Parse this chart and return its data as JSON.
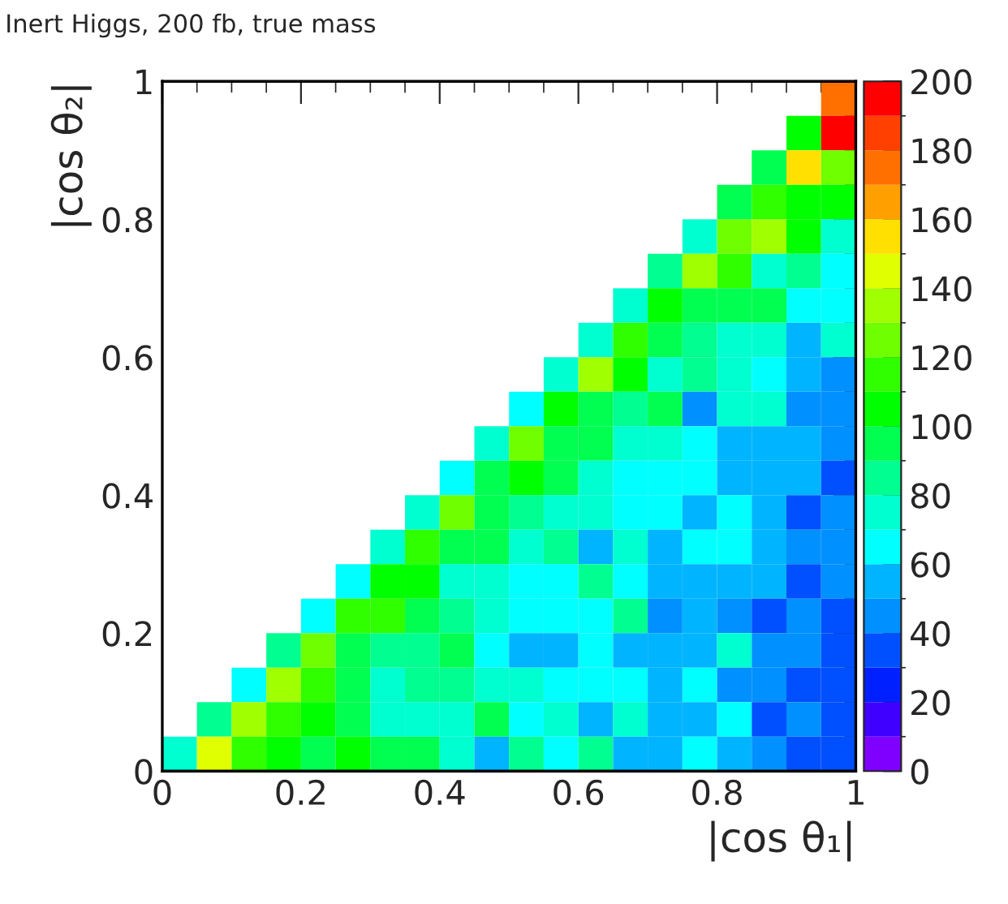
{
  "chart_data": {
    "type": "heatmap",
    "title": "Inert Higgs, 200 fb, true mass",
    "xlabel": "|cos θ₁|",
    "ylabel": "|cos θ₂|",
    "xlim": [
      0,
      1
    ],
    "ylim": [
      0,
      1
    ],
    "xticks": [
      0,
      {
        "value": 0.2,
        "label": "0.2"
      },
      {
        "value": 0.4,
        "label": "0.4"
      },
      {
        "value": 0.6,
        "label": "0.6"
      },
      {
        "value": 0.8,
        "label": "0.8"
      },
      1
    ],
    "yticks": [
      0,
      {
        "value": 0.2,
        "label": "0.2"
      },
      {
        "value": 0.4,
        "label": "0.4"
      },
      {
        "value": 0.6,
        "label": "0.6"
      },
      {
        "value": 0.8,
        "label": "0.8"
      },
      1
    ],
    "clim": [
      0,
      200
    ],
    "cticks": [
      0,
      20,
      40,
      60,
      80,
      100,
      120,
      140,
      160,
      180,
      200
    ],
    "grid": false,
    "cells": [
      [
        null,
        null,
        null,
        null,
        null,
        null,
        null,
        null,
        null,
        null,
        null,
        null,
        null,
        null,
        null,
        null,
        null,
        null,
        null,
        175
      ],
      [
        null,
        null,
        null,
        null,
        null,
        null,
        null,
        null,
        null,
        null,
        null,
        null,
        null,
        null,
        null,
        null,
        null,
        null,
        105,
        195
      ],
      [
        null,
        null,
        null,
        null,
        null,
        null,
        null,
        null,
        null,
        null,
        null,
        null,
        null,
        null,
        null,
        null,
        null,
        95,
        155,
        125
      ],
      [
        null,
        null,
        null,
        null,
        null,
        null,
        null,
        null,
        null,
        null,
        null,
        null,
        null,
        null,
        null,
        null,
        95,
        115,
        105,
        105
      ],
      [
        null,
        null,
        null,
        null,
        null,
        null,
        null,
        null,
        null,
        null,
        null,
        null,
        null,
        null,
        null,
        75,
        125,
        135,
        105,
        75
      ],
      [
        null,
        null,
        null,
        null,
        null,
        null,
        null,
        null,
        null,
        null,
        null,
        null,
        null,
        null,
        85,
        135,
        115,
        75,
        85,
        65
      ],
      [
        null,
        null,
        null,
        null,
        null,
        null,
        null,
        null,
        null,
        null,
        null,
        null,
        null,
        75,
        105,
        95,
        95,
        95,
        65,
        65
      ],
      [
        null,
        null,
        null,
        null,
        null,
        null,
        null,
        null,
        null,
        null,
        null,
        null,
        75,
        115,
        95,
        85,
        75,
        75,
        55,
        75
      ],
      [
        null,
        null,
        null,
        null,
        null,
        null,
        null,
        null,
        null,
        null,
        null,
        75,
        135,
        105,
        75,
        85,
        75,
        65,
        55,
        45
      ],
      [
        null,
        null,
        null,
        null,
        null,
        null,
        null,
        null,
        null,
        null,
        65,
        105,
        95,
        85,
        95,
        45,
        75,
        75,
        45,
        45
      ],
      [
        null,
        null,
        null,
        null,
        null,
        null,
        null,
        null,
        null,
        75,
        125,
        95,
        95,
        75,
        75,
        65,
        55,
        55,
        55,
        45
      ],
      [
        null,
        null,
        null,
        null,
        null,
        null,
        null,
        null,
        65,
        95,
        105,
        95,
        75,
        65,
        65,
        65,
        55,
        55,
        55,
        35
      ],
      [
        null,
        null,
        null,
        null,
        null,
        null,
        null,
        75,
        125,
        95,
        85,
        75,
        75,
        65,
        65,
        55,
        65,
        55,
        35,
        45
      ],
      [
        null,
        null,
        null,
        null,
        null,
        null,
        75,
        115,
        95,
        95,
        75,
        85,
        55,
        75,
        55,
        65,
        65,
        55,
        45,
        45
      ],
      [
        null,
        null,
        null,
        null,
        null,
        65,
        105,
        105,
        75,
        75,
        65,
        65,
        85,
        65,
        55,
        55,
        55,
        55,
        35,
        45
      ],
      [
        null,
        null,
        null,
        null,
        65,
        115,
        115,
        95,
        85,
        75,
        65,
        65,
        65,
        85,
        45,
        55,
        45,
        35,
        45,
        35
      ],
      [
        null,
        null,
        null,
        85,
        125,
        95,
        85,
        85,
        95,
        65,
        55,
        55,
        65,
        55,
        55,
        55,
        75,
        45,
        45,
        35
      ],
      [
        null,
        null,
        65,
        135,
        115,
        95,
        75,
        85,
        85,
        75,
        75,
        65,
        65,
        65,
        55,
        65,
        45,
        45,
        35,
        35
      ],
      [
        null,
        85,
        135,
        115,
        105,
        95,
        75,
        75,
        75,
        95,
        65,
        75,
        55,
        75,
        55,
        55,
        65,
        35,
        45,
        35
      ],
      [
        75,
        145,
        115,
        105,
        95,
        105,
        95,
        95,
        75,
        55,
        85,
        65,
        85,
        55,
        55,
        65,
        55,
        45,
        35,
        35
      ]
    ]
  }
}
